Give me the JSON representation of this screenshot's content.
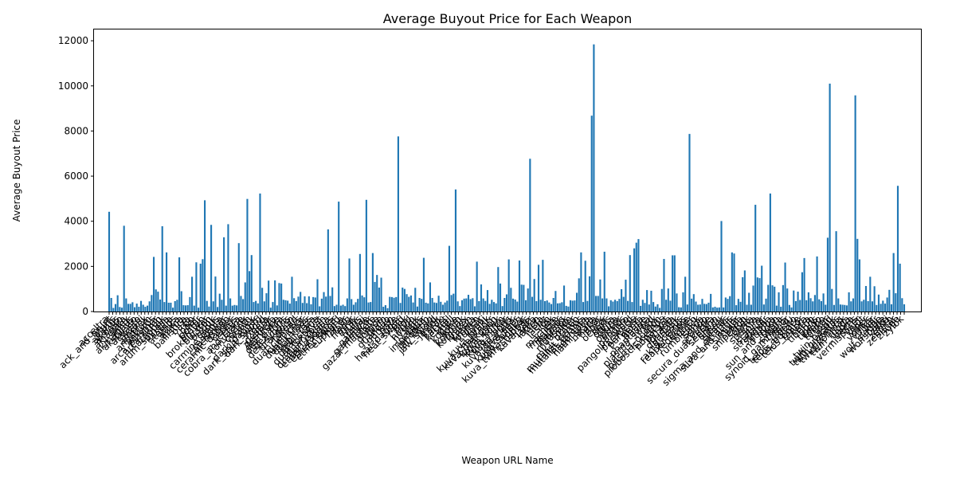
{
  "chart_data": {
    "type": "bar",
    "title": "Average Buyout Price for Each Weapon",
    "xlabel": "Weapon URL Name",
    "ylabel": "Average Buyout Price",
    "ylim": [
      0,
      12500
    ],
    "yticks": [
      0,
      2000,
      4000,
      6000,
      8000,
      10000,
      12000
    ],
    "grid": false,
    "bar_color": "#1f77b4",
    "visible_category_labels": [
      "acceltra",
      "ack_and_brunt",
      "afuris",
      "akarius",
      "akbolto",
      "akjagara",
      "aklex",
      "akmagnus",
      "akstiletto",
      "akvasto",
      "akzani",
      "amprex",
      "angstrum",
      "ankyros",
      "arca_plasmor",
      "arca_titron",
      "argonak",
      "arum_spinosa",
      "astilla",
      "atomos",
      "attica",
      "azima",
      "ballistica",
      "baza",
      "bo",
      "boar",
      "boltor",
      "braton",
      "broken_war",
      "burston",
      "buzlok",
      "cadus",
      "carmine_penta",
      "cassowar",
      "catchmoon",
      "ceramic_dagger",
      "cernos",
      "cestra",
      "cobra_and_crane",
      "convectrix",
      "corinth",
      "cyanex",
      "dark_dagger",
      "dark_split_sword",
      "dark_sword",
      "dera",
      "despair",
      "destreza",
      "dethcube",
      "dex_dakra",
      "dex_furis",
      "dex_sybaris",
      "drakgoon",
      "dread",
      "dual_cleavers",
      "dual_ichor",
      "dual_kamas",
      "dual_keres",
      "dual_raza",
      "dual_skana",
      "dual_toxocyst",
      "dual_zoren",
      "dragon_nikana",
      "ether_daggers",
      "ether_reaper",
      "ether_sword",
      "euphona",
      "falcor",
      "fang",
      "fragor",
      "furax",
      "furis",
      "fusilai",
      "galatine",
      "gammacor",
      "gazal_machete",
      "glaive",
      "gorgon",
      "gram",
      "guandao",
      "gunsen",
      "hate",
      "heat_dagger",
      "heat_sword",
      "hek",
      "hind",
      "hirudo",
      "hystrix",
      "ignis",
      "imperator",
      "innodem",
      "jat_kittag",
      "jaw_sword",
      "javlok",
      "karak",
      "karyst",
      "kestrel",
      "knell",
      "kogake",
      "kohm",
      "kohmak",
      "komorex",
      "kraken",
      "kreska",
      "kronen",
      "kulstar",
      "kunai",
      "kuva_brakk",
      "kuva_chakkhurr",
      "kuva_drakgoon",
      "kuva_karak",
      "kuva_kohm",
      "kuva_nukor",
      "kuva_ogris",
      "kuva_quartakk",
      "kuva_seer",
      "kuva_shildeg",
      "kuva_tonkor",
      "kuva_twin_stubbas",
      "kuva_zarr",
      "lanka",
      "latron",
      "lecta",
      "lenz",
      "lesion",
      "lex",
      "machete",
      "magistar",
      "magnus",
      "marelok",
      "mausolon",
      "miter",
      "mk1_braton",
      "mutalist_cernos",
      "mutalist_quanta",
      "nagantaka",
      "nami_skyla",
      "nikana",
      "nukor",
      "obex",
      "ocucor",
      "ogris",
      "ohma",
      "okina",
      "opticor",
      "orthos",
      "pandero",
      "pangolin_sword",
      "paracesis",
      "paracyst",
      "penta",
      "phage",
      "phantasma",
      "plasma_sword",
      "pox",
      "prisma_gorgon",
      "proboscis_cernos",
      "pupacyst",
      "pyrana",
      "quanta",
      "quartakk",
      "quassus",
      "rakta_cernos",
      "reaper_prime",
      "redeemer",
      "rubico",
      "rumblejack",
      "sarpa",
      "scindo",
      "scourge",
      "secura_dual_cestra",
      "sepfahn",
      "shedu",
      "sibear",
      "sicarus",
      "sigma_and_octantis",
      "silva_and_aegis",
      "simulor",
      "skana",
      "snipetron",
      "sobek",
      "soma",
      "spectra",
      "spira",
      "staticor",
      "stradavar",
      "stropha",
      "stubba",
      "sun_and_moon",
      "supra",
      "sybaris",
      "synoid_gammacor",
      "tatsu",
      "telos_akbolto",
      "telos_boltace",
      "telos_boltor",
      "tenora",
      "tetra",
      "tiberon",
      "tigris",
      "tipedo",
      "tonbo",
      "tonkor",
      "torid",
      "twin_basolk",
      "twin_grakatas",
      "twin_gremlins",
      "twin_kohmak",
      "twin_rogga",
      "venka",
      "vectis",
      "vermisplicer",
      "veldt",
      "viper",
      "volnus",
      "vulkar",
      "war",
      "wolf_sledge",
      "wolfsbane",
      "zakti",
      "zenith",
      "zenistar",
      "zhuge",
      "zylok"
    ],
    "values": [
      4420,
      600,
      160,
      330,
      720,
      200,
      170,
      3800,
      580,
      340,
      340,
      410,
      190,
      350,
      210,
      470,
      300,
      210,
      260,
      450,
      730,
      2420,
      980,
      880,
      530,
      3780,
      420,
      2620,
      390,
      390,
      170,
      460,
      520,
      2400,
      900,
      280,
      270,
      280,
      640,
      1540,
      260,
      2180,
      170,
      2120,
      2320,
      4930,
      470,
      220,
      3840,
      450,
      1550,
      200,
      790,
      520,
      3290,
      260,
      3870,
      580,
      260,
      290,
      270,
      3030,
      690,
      550,
      1290,
      4990,
      1790,
      2500,
      420,
      470,
      360,
      5230,
      1050,
      450,
      810,
      1370,
      170,
      420,
      1380,
      270,
      1260,
      1240,
      520,
      500,
      480,
      350,
      1540,
      590,
      460,
      660,
      870,
      380,
      670,
      370,
      670,
      320,
      640,
      620,
      1430,
      230,
      570,
      860,
      660,
      3640,
      690,
      1070,
      240,
      300,
      4870,
      260,
      300,
      240,
      580,
      2350,
      550,
      300,
      410,
      560,
      2550,
      710,
      630,
      4950,
      400,
      420,
      2590,
      1310,
      1620,
      1060,
      1500,
      210,
      280,
      150,
      650,
      640,
      610,
      640,
      7760,
      380,
      1060,
      1000,
      770,
      650,
      710,
      400,
      1050,
      220,
      600,
      560,
      2380,
      390,
      360,
      1290,
      600,
      400,
      380,
      700,
      430,
      300,
      400,
      480,
      2910,
      730,
      790,
      5410,
      450,
      240,
      500,
      570,
      580,
      740,
      550,
      590,
      230,
      2210,
      460,
      1200,
      580,
      470,
      950,
      340,
      520,
      420,
      360,
      1970,
      1240,
      240,
      600,
      760,
      2310,
      1050,
      570,
      530,
      440,
      2260,
      1190,
      1180,
      500,
      1020,
      6770,
      650,
      1440,
      460,
      2070,
      520,
      2290,
      460,
      490,
      400,
      330,
      600,
      910,
      360,
      370,
      410,
      1150,
      250,
      220,
      500,
      480,
      490,
      830,
      1470,
      2620,
      420,
      2250,
      470,
      1560,
      8680,
      11840,
      690,
      690,
      1420,
      580,
      2650,
      580,
      230,
      500,
      440,
      520,
      460,
      560,
      990,
      650,
      1410,
      470,
      2500,
      420,
      2800,
      3050,
      3210,
      250,
      520,
      380,
      950,
      310,
      920,
      420,
      220,
      320,
      160,
      1000,
      2330,
      520,
      1020,
      480,
      2490,
      2490,
      800,
      190,
      180,
      850,
      1540,
      310,
      7870,
      570,
      770,
      440,
      300,
      310,
      560,
      340,
      330,
      390,
      780,
      180,
      210,
      170,
      180,
      4010,
      180,
      620,
      560,
      680,
      2620,
      2570,
      280,
      560,
      430,
      1520,
      1820,
      300,
      830,
      300,
      1150,
      4730,
      1510,
      1480,
      2030,
      310,
      570,
      1180,
      5230,
      1160,
      1100,
      260,
      850,
      210,
      1170,
      2170,
      1020,
      290,
      180,
      930,
      460,
      880,
      510,
      1740,
      2370,
      500,
      850,
      590,
      450,
      730,
      2440,
      540,
      460,
      800,
      300,
      3270,
      10100,
      1000,
      290,
      3560,
      580,
      310,
      300,
      290,
      270,
      850,
      450,
      580,
      9580,
      3220,
      2310,
      450,
      520,
      1130,
      460,
      1540,
      450,
      1120,
      290,
      750,
      340,
      480,
      350,
      620,
      960,
      320,
      2590,
      810,
      5570,
      2120,
      590,
      320
    ]
  }
}
